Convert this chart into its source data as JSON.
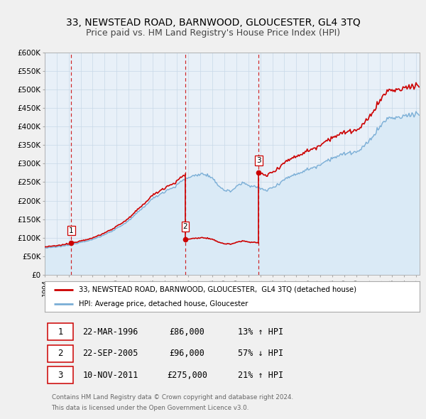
{
  "title": "33, NEWSTEAD ROAD, BARNWOOD, GLOUCESTER, GL4 3TQ",
  "subtitle": "Price paid vs. HM Land Registry's House Price Index (HPI)",
  "ylim": [
    0,
    600000
  ],
  "yticks": [
    0,
    50000,
    100000,
    150000,
    200000,
    250000,
    300000,
    350000,
    400000,
    450000,
    500000,
    550000,
    600000
  ],
  "ytick_labels": [
    "£0",
    "£50K",
    "£100K",
    "£150K",
    "£200K",
    "£250K",
    "£300K",
    "£350K",
    "£400K",
    "£450K",
    "£500K",
    "£550K",
    "£600K"
  ],
  "line1_color": "#cc0000",
  "line2_color": "#7aaed6",
  "line2_fill_color": "#daeaf6",
  "background_color": "#f0f0f0",
  "plot_bg_color": "#e8f0f8",
  "grid_color": "#c8d8e8",
  "sale_marker_color": "#cc0000",
  "sale_dates": [
    1996.22,
    2005.73,
    2011.87
  ],
  "sale_prices": [
    86000,
    96000,
    275000
  ],
  "sale_labels": [
    "1",
    "2",
    "3"
  ],
  "vline_color": "#cc0000",
  "legend_line1": "33, NEWSTEAD ROAD, BARNWOOD, GLOUCESTER,  GL4 3TQ (detached house)",
  "legend_line2": "HPI: Average price, detached house, Gloucester",
  "table_data": [
    [
      "1",
      "22-MAR-1996",
      "£86,000",
      "13% ↑ HPI"
    ],
    [
      "2",
      "22-SEP-2005",
      "£96,000",
      "57% ↓ HPI"
    ],
    [
      "3",
      "10-NOV-2011",
      "£275,000",
      "21% ↑ HPI"
    ]
  ],
  "footnote1": "Contains HM Land Registry data © Crown copyright and database right 2024.",
  "footnote2": "This data is licensed under the Open Government Licence v3.0.",
  "title_fontsize": 10,
  "subtitle_fontsize": 9,
  "xstart": 1994,
  "xend": 2025.3
}
